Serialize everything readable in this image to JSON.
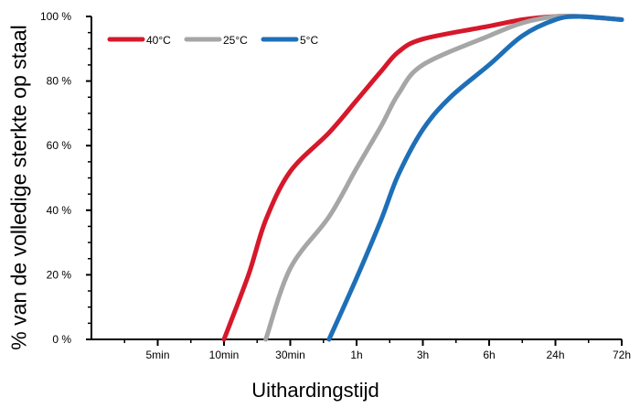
{
  "chart_data": {
    "type": "line",
    "xlabel": "Uithardingstijd",
    "ylabel": "% van de volledige sterkte op staal",
    "x_ticks": [
      "5min",
      "10min",
      "30min",
      "1h",
      "3h",
      "6h",
      "24h",
      "72h"
    ],
    "y_ticks": [
      "0 %",
      "20 %",
      "40 %",
      "60 %",
      "80 %",
      "100 %"
    ],
    "ylim": [
      0,
      100
    ],
    "grid": false,
    "legend_position": "top-left",
    "series": [
      {
        "name": "40°C",
        "color": "#d6182b",
        "x": [
          "10min",
          "15min",
          "20min",
          "30min",
          "45min",
          "1h",
          "1.5h",
          "2h",
          "3h",
          "6h",
          "12h",
          "24h",
          "36h",
          "72h"
        ],
        "y": [
          0,
          20,
          37,
          52,
          64,
          74,
          83,
          89,
          93,
          97,
          99,
          100,
          100,
          99
        ]
      },
      {
        "name": "25°C",
        "color": "#a6a6a6",
        "x": [
          "20min",
          "30min",
          "45min",
          "1h",
          "1.5h",
          "2h",
          "3h",
          "6h",
          "12h",
          "24h",
          "36h",
          "72h"
        ],
        "y": [
          0,
          22,
          38,
          53,
          66,
          76,
          85,
          94,
          98,
          100,
          100,
          99
        ]
      },
      {
        "name": "5°C",
        "color": "#1e6fb8",
        "x": [
          "45min",
          "1h",
          "1.5h",
          "2h",
          "3h",
          "4h",
          "6h",
          "12h",
          "24h",
          "36h",
          "72h"
        ],
        "y": [
          0,
          19,
          37,
          51,
          65,
          75,
          85,
          94,
          99,
          100,
          99
        ]
      }
    ]
  }
}
